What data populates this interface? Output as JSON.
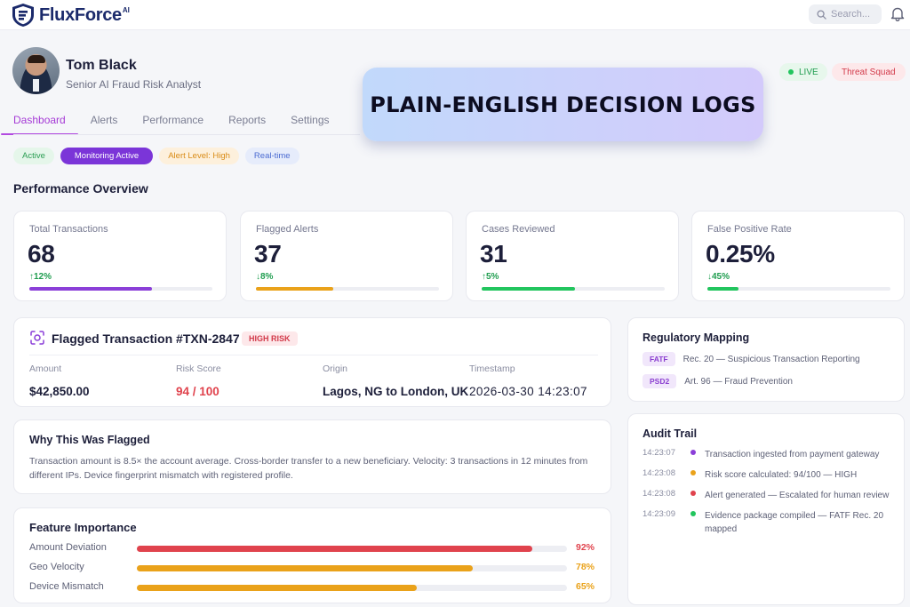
{
  "brand": {
    "name": "FluxForce",
    "suffix": "AI"
  },
  "search": {
    "placeholder": "Search..."
  },
  "profile": {
    "name": "Tom Black",
    "role": "Senior AI Fraud Risk Analyst"
  },
  "header_badges": {
    "live": "LIVE",
    "squad": "Threat Squad"
  },
  "tabs": [
    "Dashboard",
    "Alerts",
    "Performance",
    "Reports",
    "Settings"
  ],
  "active_tab": "Dashboard",
  "chips": [
    "Active",
    "Monitoring Active",
    "Alert Level: High",
    "Real-time"
  ],
  "overview": {
    "title": "Performance Overview",
    "stats": [
      {
        "label": "Total Transactions",
        "value": "68",
        "delta": "↑12%",
        "progress": 0.67,
        "color": "#8b3fd8"
      },
      {
        "label": "Flagged Alerts",
        "value": "37",
        "delta": "↓8%",
        "progress": 0.42,
        "color": "#eaa21a"
      },
      {
        "label": "Cases Reviewed",
        "value": "31",
        "delta": "↑5%",
        "progress": 0.51,
        "color": "#22c55e"
      },
      {
        "label": "False Positive Rate",
        "value": "0.25%",
        "delta": "↓45%",
        "progress": 0.17,
        "color": "#22c55e"
      }
    ]
  },
  "transaction": {
    "title": "Flagged Transaction #TXN-2847",
    "risk_badge": "HIGH RISK",
    "fields": [
      {
        "label": "Amount",
        "value": "$42,850.00"
      },
      {
        "label": "Risk Score",
        "value": "94 / 100"
      },
      {
        "label": "Origin",
        "value": "Lagos, NG to London, UK"
      },
      {
        "label": "Timestamp",
        "value": "2026-03-30 14:23:07"
      }
    ]
  },
  "why_flagged": {
    "title": "Why This Was Flagged",
    "text": "Transaction amount is 8.5× the account average. Cross-border transfer to a new beneficiary. Velocity: 3 transactions in 12 minutes from different IPs. Device fingerprint mismatch with registered profile."
  },
  "features": {
    "title": "Feature Importance",
    "items": [
      {
        "name": "Amount Deviation",
        "value": 0.92,
        "label": "92%",
        "color": "#e0434d"
      },
      {
        "name": "Geo Velocity",
        "value": 0.78,
        "label": "78%",
        "color": "#eaa21a"
      },
      {
        "name": "Device Mismatch",
        "value": 0.65,
        "label": "65%",
        "color": "#eaa21a"
      }
    ]
  },
  "regulatory": {
    "title": "Regulatory Mapping",
    "items": [
      {
        "tag": "FATF",
        "text": "Rec. 20 — Suspicious Transaction Reporting"
      },
      {
        "tag": "PSD2",
        "text": "Art. 96 — Fraud Prevention"
      }
    ]
  },
  "audit": {
    "title": "Audit Trail",
    "items": [
      {
        "time": "14:23:07",
        "text": "Transaction ingested from payment gateway",
        "color": "#8b3fd8"
      },
      {
        "time": "14:23:08",
        "text": "Risk score calculated: 94/100 — HIGH",
        "color": "#eaa21a"
      },
      {
        "time": "14:23:08",
        "text": "Alert generated — Escalated for human review",
        "color": "#e0434d"
      },
      {
        "time": "14:23:09",
        "text": "Evidence package compiled — FATF Rec. 20 mapped",
        "color": "#22c55e"
      }
    ]
  },
  "banner": {
    "text": "PLAIN-ENGLISH DECISION LOGS"
  },
  "colors": {
    "brand": "#1b2a6b",
    "accent": "#b24be0",
    "danger": "#e0434d",
    "success": "#22c55e",
    "warning": "#eaa21a"
  },
  "icons": [
    "shield-logo-icon",
    "search-icon",
    "bell-icon",
    "scan-target-icon"
  ]
}
